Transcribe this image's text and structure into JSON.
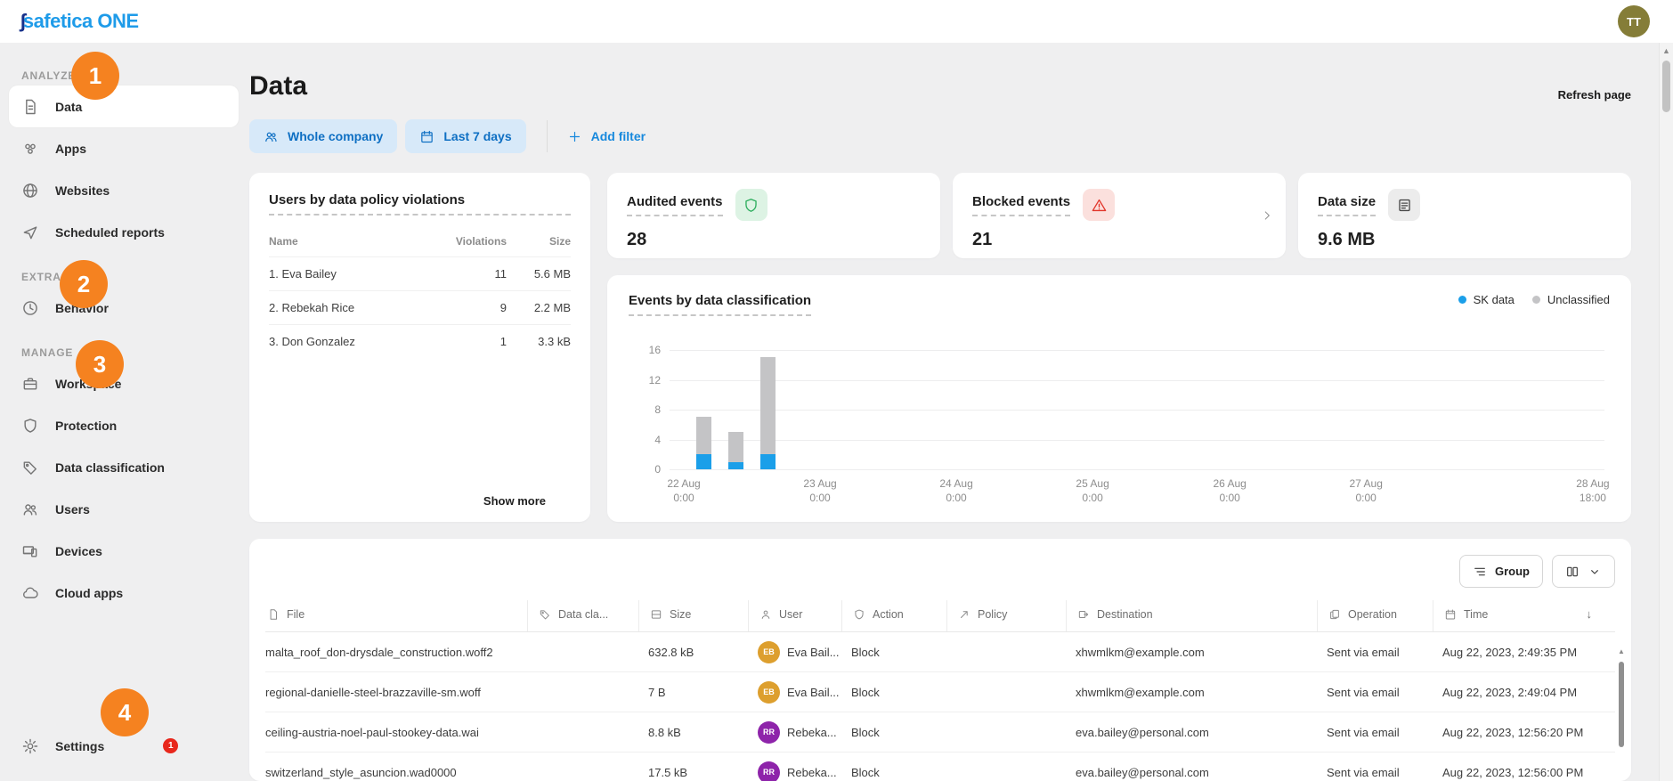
{
  "header": {
    "logo_text": "safetica ONE",
    "avatar": "TT"
  },
  "page": {
    "title": "Data",
    "refresh_label": "Refresh page"
  },
  "filters": {
    "company": "Whole company",
    "range": "Last 7 days",
    "add": "Add filter"
  },
  "sidebar": {
    "sections": [
      {
        "label": "ANALYZE",
        "items": [
          {
            "icon": "document",
            "label": "Data",
            "active": true
          },
          {
            "icon": "apps",
            "label": "Apps"
          },
          {
            "icon": "globe",
            "label": "Websites"
          },
          {
            "icon": "send",
            "label": "Scheduled reports"
          }
        ]
      },
      {
        "label": "EXTRA",
        "items": [
          {
            "icon": "clock",
            "label": "Behavior"
          }
        ]
      },
      {
        "label": "MANAGE",
        "items": [
          {
            "icon": "briefcase",
            "label": "Workspace"
          },
          {
            "icon": "shield",
            "label": "Protection"
          },
          {
            "icon": "tag",
            "label": "Data classification"
          },
          {
            "icon": "people",
            "label": "Users"
          },
          {
            "icon": "devices",
            "label": "Devices"
          },
          {
            "icon": "cloud",
            "label": "Cloud apps"
          }
        ]
      }
    ],
    "settings": {
      "label": "Settings",
      "alert_count": "1"
    },
    "step_annotations": [
      "1",
      "2",
      "3",
      "4"
    ]
  },
  "users_card": {
    "title": "Users by data policy violations",
    "columns": [
      "Name",
      "Violations",
      "Size"
    ],
    "rows": [
      {
        "name": "1. Eva Bailey",
        "violations": "11",
        "size": "5.6 MB"
      },
      {
        "name": "2. Rebekah Rice",
        "violations": "9",
        "size": "2.2 MB"
      },
      {
        "name": "3. Don Gonzalez",
        "violations": "1",
        "size": "3.3 kB"
      }
    ],
    "show_more": "Show more"
  },
  "stats": [
    {
      "title": "Audited events",
      "icon": "shield",
      "value": "28",
      "icon_color": "#2eae5e",
      "icon_bg": "#ddf3e4"
    },
    {
      "title": "Blocked events",
      "icon": "warning",
      "value": "21",
      "icon_color": "#e2362b",
      "icon_bg": "#fbe0dd",
      "has_chevron": true
    },
    {
      "title": "Data size",
      "icon": "stack",
      "value": "9.6 MB",
      "icon_color": "#4a4a4a",
      "icon_bg": "#ececec"
    }
  ],
  "chart_data": {
    "type": "bar",
    "stacked": true,
    "title": "Events by data classification",
    "legend": [
      {
        "label": "SK data",
        "color": "#1b9fe9"
      },
      {
        "label": "Unclassified",
        "color": "#c4c4c6"
      }
    ],
    "ylim": [
      0,
      16
    ],
    "y_ticks": [
      16,
      12,
      8,
      4,
      0
    ],
    "x_ticks": [
      {
        "date": "22 Aug",
        "time": "0:00",
        "pct": 0
      },
      {
        "date": "23 Aug",
        "time": "0:00",
        "pct": 14.8
      },
      {
        "date": "24 Aug",
        "time": "0:00",
        "pct": 29.6
      },
      {
        "date": "25 Aug",
        "time": "0:00",
        "pct": 44.4
      },
      {
        "date": "26 Aug",
        "time": "0:00",
        "pct": 59.3
      },
      {
        "date": "27 Aug",
        "time": "0:00",
        "pct": 74.1
      },
      {
        "date": "28 Aug",
        "time": "18:00",
        "pct": 100
      }
    ],
    "series_names": [
      "SK data",
      "Unclassified"
    ],
    "bars": [
      {
        "x_pct": 1.4,
        "sk_data": 2,
        "unclassified": 5
      },
      {
        "x_pct": 4.8,
        "sk_data": 1,
        "unclassified": 4
      },
      {
        "x_pct": 8.3,
        "sk_data": 2,
        "unclassified": 13
      }
    ]
  },
  "events_table": {
    "group_label": "Group",
    "columns": [
      {
        "icon": "file",
        "label": "File"
      },
      {
        "icon": "tag",
        "label": "Data cla..."
      },
      {
        "icon": "drive",
        "label": "Size"
      },
      {
        "icon": "person",
        "label": "User"
      },
      {
        "icon": "shield",
        "label": "Action"
      },
      {
        "icon": "policy",
        "label": "Policy"
      },
      {
        "icon": "destination",
        "label": "Destination"
      },
      {
        "icon": "operation",
        "label": "Operation"
      },
      {
        "icon": "calendar",
        "label": "Time"
      }
    ],
    "sort_arrow": "↓",
    "rows": [
      {
        "file": "malta_roof_don-drysdale_construction.woff2",
        "data_class": "",
        "size": "632.8 kB",
        "user_initials": "EB",
        "user_name": "Eva Bail...",
        "user_color": "#dd9f2e",
        "action": "Block",
        "policy": "",
        "destination": "xhwmlkm@example.com",
        "operation": "Sent via email",
        "time": "Aug 22, 2023, 2:49:35 PM"
      },
      {
        "file": "regional-danielle-steel-brazzaville-sm.woff",
        "data_class": "",
        "size": "7 B",
        "user_initials": "EB",
        "user_name": "Eva Bail...",
        "user_color": "#dd9f2e",
        "action": "Block",
        "policy": "",
        "destination": "xhwmlkm@example.com",
        "operation": "Sent via email",
        "time": "Aug 22, 2023, 2:49:04 PM"
      },
      {
        "file": "ceiling-austria-noel-paul-stookey-data.wai",
        "data_class": "",
        "size": "8.8 kB",
        "user_initials": "RR",
        "user_name": "Rebeka...",
        "user_color": "#8e24aa",
        "action": "Block",
        "policy": "",
        "destination": "eva.bailey@personal.com",
        "operation": "Sent via email",
        "time": "Aug 22, 2023, 12:56:20 PM"
      },
      {
        "file": "switzerland_style_asuncion.wad0000",
        "data_class": "",
        "size": "17.5 kB",
        "user_initials": "RR",
        "user_name": "Rebeka...",
        "user_color": "#8e24aa",
        "action": "Block",
        "policy": "",
        "destination": "eva.bailey@personal.com",
        "operation": "Sent via email",
        "time": "Aug 22, 2023, 12:56:00 PM"
      }
    ]
  }
}
